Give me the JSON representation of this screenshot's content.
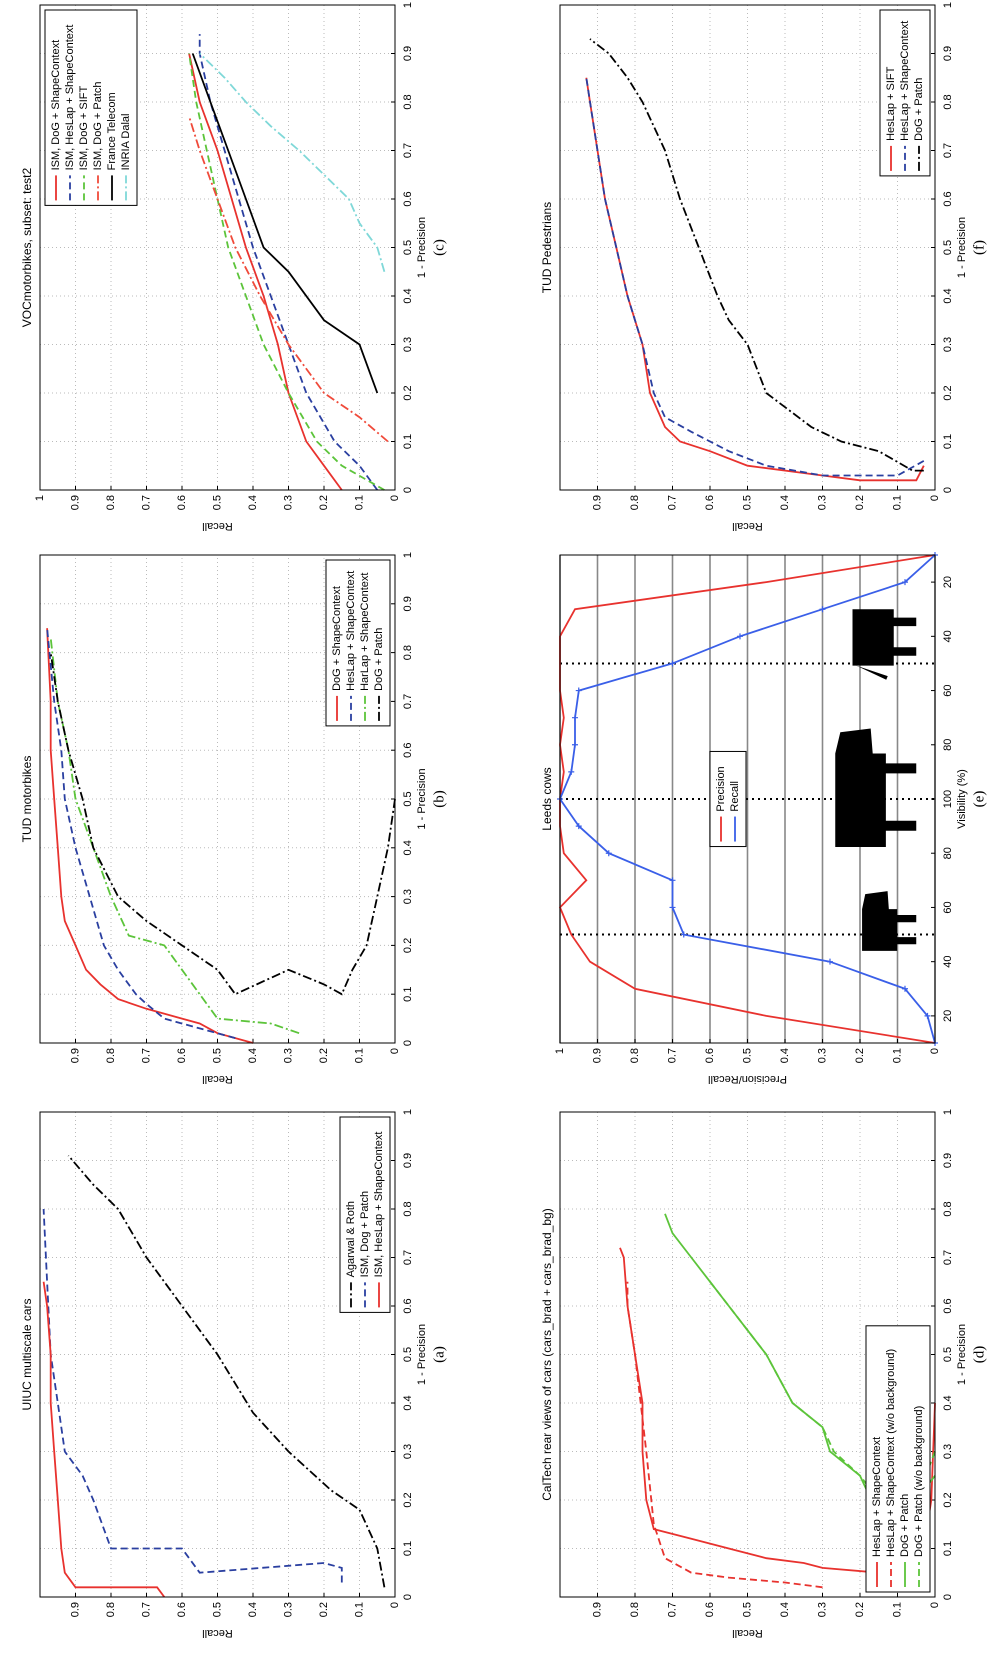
{
  "chart_data": [
    {
      "type": "line",
      "title": "UIUC multiscale cars",
      "panel_label": "(a)",
      "x_label": "1 - Precision",
      "y_label": "Recall",
      "xlim": [
        0,
        1
      ],
      "ylim": [
        0,
        1
      ],
      "xticks": [
        0,
        0.1,
        0.2,
        0.3,
        0.4,
        0.5,
        0.6,
        0.7,
        0.8,
        0.9,
        1
      ],
      "yticks": [
        0,
        0.1,
        0.2,
        0.3,
        0.4,
        0.5,
        0.6,
        0.7,
        0.8,
        0.9
      ],
      "grid": true,
      "legend": "bottom-right",
      "series": [
        {
          "name": "Agarwal & Roth",
          "color": "#000000",
          "style": "dashdot",
          "x": [
            0.02,
            0.1,
            0.18,
            0.22,
            0.3,
            0.38,
            0.5,
            0.6,
            0.7,
            0.8,
            0.85,
            0.91
          ],
          "values": [
            0.03,
            0.05,
            0.1,
            0.18,
            0.3,
            0.4,
            0.5,
            0.6,
            0.7,
            0.78,
            0.85,
            0.92
          ]
        },
        {
          "name": "ISM, Dog + Patch",
          "color": "#2a3fa0",
          "style": "dashed",
          "x": [
            0.03,
            0.06,
            0.07,
            0.05,
            0.1,
            0.1,
            0.2,
            0.25,
            0.3,
            0.4,
            0.5,
            0.65,
            0.8
          ],
          "values": [
            0.15,
            0.15,
            0.2,
            0.55,
            0.6,
            0.8,
            0.85,
            0.88,
            0.93,
            0.95,
            0.97,
            0.98,
            0.99
          ]
        },
        {
          "name": "ISM, HesLap + ShapeContext",
          "color": "#e8322e",
          "style": "solid",
          "x": [
            0,
            0.02,
            0.02,
            0.05,
            0.1,
            0.2,
            0.3,
            0.4,
            0.5,
            0.6,
            0.65
          ],
          "values": [
            0.65,
            0.67,
            0.9,
            0.93,
            0.94,
            0.95,
            0.96,
            0.97,
            0.97,
            0.98,
            0.99
          ]
        }
      ]
    },
    {
      "type": "line",
      "title": "TUD motorbikes",
      "panel_label": "(b)",
      "x_label": "1 - Precision",
      "y_label": "Recall",
      "xlim": [
        0,
        1
      ],
      "ylim": [
        0,
        1
      ],
      "xticks": [
        0,
        0.1,
        0.2,
        0.3,
        0.4,
        0.5,
        0.6,
        0.7,
        0.8,
        0.9,
        1
      ],
      "yticks": [
        0,
        0.1,
        0.2,
        0.3,
        0.4,
        0.5,
        0.6,
        0.7,
        0.8,
        0.9
      ],
      "grid": true,
      "legend": "bottom-right",
      "series": [
        {
          "name": "DoG + ShapeContext",
          "color": "#e8322e",
          "style": "solid",
          "x": [
            0,
            0.02,
            0.04,
            0.05,
            0.07,
            0.09,
            0.12,
            0.15,
            0.2,
            0.25,
            0.3,
            0.4,
            0.5,
            0.6,
            0.7,
            0.85
          ],
          "values": [
            0.4,
            0.5,
            0.55,
            0.6,
            0.7,
            0.78,
            0.83,
            0.87,
            0.9,
            0.93,
            0.94,
            0.95,
            0.96,
            0.97,
            0.97,
            0.98
          ]
        },
        {
          "name": "HesLap + ShapeContext",
          "color": "#2a3fa0",
          "style": "dashed",
          "x": [
            0.01,
            0.03,
            0.05,
            0.08,
            0.1,
            0.15,
            0.2,
            0.3,
            0.4,
            0.5,
            0.6,
            0.7,
            0.85
          ],
          "values": [
            0.45,
            0.55,
            0.65,
            0.7,
            0.73,
            0.78,
            0.82,
            0.86,
            0.9,
            0.93,
            0.94,
            0.96,
            0.98
          ]
        },
        {
          "name": "HarLap + ShapeContext",
          "color": "#5cc43a",
          "style": "dashdot",
          "x": [
            0.02,
            0.04,
            0.05,
            0.1,
            0.15,
            0.2,
            0.22,
            0.3,
            0.4,
            0.5,
            0.6,
            0.7,
            0.83
          ],
          "values": [
            0.27,
            0.35,
            0.5,
            0.55,
            0.6,
            0.65,
            0.75,
            0.8,
            0.85,
            0.9,
            0.92,
            0.95,
            0.97
          ]
        },
        {
          "name": "DoG + Patch",
          "color": "#000000",
          "style": "dashdot",
          "x": [
            0.5,
            0.4,
            0.3,
            0.2,
            0.15,
            0.1,
            0.12,
            0.15,
            0.1,
            0.15,
            0.2,
            0.25,
            0.3,
            0.4,
            0.5,
            0.6,
            0.7,
            0.8
          ],
          "values": [
            0,
            0.02,
            0.05,
            0.08,
            0.12,
            0.15,
            0.2,
            0.3,
            0.45,
            0.5,
            0.6,
            0.7,
            0.78,
            0.85,
            0.88,
            0.92,
            0.95,
            0.97
          ]
        }
      ]
    },
    {
      "type": "line",
      "title": "VOCmotorbikes, subset: test2",
      "panel_label": "(c)",
      "x_label": "1 - Precision",
      "y_label": "Recall",
      "xlim": [
        0,
        1
      ],
      "ylim": [
        0,
        1
      ],
      "xticks": [
        0,
        0.1,
        0.2,
        0.3,
        0.4,
        0.5,
        0.6,
        0.7,
        0.8,
        0.9,
        1
      ],
      "yticks": [
        0,
        0.1,
        0.2,
        0.3,
        0.4,
        0.5,
        0.6,
        0.7,
        0.8,
        0.9,
        1
      ],
      "grid": true,
      "legend": "top-right",
      "series": [
        {
          "name": "ISM, DoG + ShapeContext",
          "color": "#e8322e",
          "style": "solid",
          "x": [
            0,
            0.05,
            0.1,
            0.2,
            0.3,
            0.4,
            0.5,
            0.6,
            0.7,
            0.8,
            0.9
          ],
          "values": [
            0.15,
            0.2,
            0.25,
            0.3,
            0.33,
            0.37,
            0.42,
            0.46,
            0.5,
            0.55,
            0.58
          ]
        },
        {
          "name": "ISM, HesLap + ShapeContext",
          "color": "#2a3fa0",
          "style": "dashed",
          "x": [
            0,
            0.05,
            0.1,
            0.2,
            0.3,
            0.4,
            0.5,
            0.6,
            0.7,
            0.8,
            0.9,
            0.94
          ],
          "values": [
            0.05,
            0.1,
            0.17,
            0.25,
            0.3,
            0.35,
            0.4,
            0.44,
            0.48,
            0.52,
            0.55,
            0.55
          ]
        },
        {
          "name": "ISM, DoG + SIFT",
          "color": "#5cc43a",
          "style": "dashed",
          "x": [
            0,
            0.05,
            0.1,
            0.2,
            0.3,
            0.4,
            0.5,
            0.6,
            0.7,
            0.8,
            0.9
          ],
          "values": [
            0.03,
            0.15,
            0.22,
            0.3,
            0.37,
            0.42,
            0.47,
            0.5,
            0.53,
            0.56,
            0.58
          ]
        },
        {
          "name": "ISM, DoG + Patch",
          "color": "#f04a3a",
          "style": "dashdot",
          "x": [
            0.1,
            0.15,
            0.2,
            0.3,
            0.4,
            0.5,
            0.6,
            0.7,
            0.77
          ],
          "values": [
            0.02,
            0.1,
            0.2,
            0.3,
            0.38,
            0.45,
            0.5,
            0.55,
            0.58
          ]
        },
        {
          "name": "France Telecom",
          "color": "#000000",
          "style": "solid",
          "x": [
            0.2,
            0.3,
            0.35,
            0.45,
            0.5,
            0.6,
            0.7,
            0.8,
            0.9
          ],
          "values": [
            0.05,
            0.1,
            0.2,
            0.3,
            0.37,
            0.42,
            0.47,
            0.52,
            0.57
          ]
        },
        {
          "name": "INRIA Dalal",
          "color": "#7fd8d8",
          "style": "dashdot",
          "x": [
            0.45,
            0.5,
            0.55,
            0.6,
            0.65,
            0.7,
            0.75,
            0.8,
            0.85,
            0.9
          ],
          "values": [
            0.03,
            0.05,
            0.1,
            0.13,
            0.2,
            0.27,
            0.35,
            0.42,
            0.48,
            0.55
          ]
        }
      ]
    },
    {
      "type": "line",
      "title": "CalTech rear views of cars (cars_brad + cars_brad_bg)",
      "panel_label": "(d)",
      "x_label": "1 - Precision",
      "y_label": "Recall",
      "xlim": [
        0,
        1
      ],
      "ylim": [
        0,
        1
      ],
      "xticks": [
        0,
        0.1,
        0.2,
        0.3,
        0.4,
        0.5,
        0.6,
        0.7,
        0.8,
        0.9,
        1
      ],
      "yticks": [
        0,
        0.1,
        0.2,
        0.3,
        0.4,
        0.5,
        0.6,
        0.7,
        0.8,
        0.9
      ],
      "grid": true,
      "legend": "bottom-left",
      "series": [
        {
          "name": "HesLap + ShapeContext",
          "color": "#e8322e",
          "style": "solid",
          "x": [
            0.4,
            0.2,
            0.1,
            0.06,
            0.05,
            0.06,
            0.07,
            0.08,
            0.1,
            0.12,
            0.14,
            0.2,
            0.3,
            0.4,
            0.5,
            0.6,
            0.7,
            0.72
          ],
          "values": [
            0,
            0.01,
            0.03,
            0.08,
            0.15,
            0.3,
            0.35,
            0.45,
            0.55,
            0.65,
            0.75,
            0.77,
            0.78,
            0.78,
            0.8,
            0.82,
            0.83,
            0.84
          ]
        },
        {
          "name": "HesLap + ShapeContext (w/o background)",
          "color": "#e8322e",
          "style": "dashed",
          "x": [
            0.02,
            0.03,
            0.04,
            0.05,
            0.08,
            0.15,
            0.3,
            0.5,
            0.6,
            0.65
          ],
          "values": [
            0.3,
            0.4,
            0.55,
            0.65,
            0.72,
            0.75,
            0.77,
            0.8,
            0.82,
            0.82
          ]
        },
        {
          "name": "DoG + Patch",
          "color": "#5cc43a",
          "style": "solid",
          "x": [
            0.25,
            0.2,
            0.17,
            0.2,
            0.25,
            0.3,
            0.35,
            0.4,
            0.5,
            0.55,
            0.6,
            0.65,
            0.7,
            0.75,
            0.79
          ],
          "values": [
            0,
            0.05,
            0.1,
            0.17,
            0.2,
            0.28,
            0.3,
            0.38,
            0.45,
            0.5,
            0.55,
            0.6,
            0.65,
            0.7,
            0.72
          ]
        },
        {
          "name": "DoG + Patch (w/o background)",
          "color": "#5cc43a",
          "style": "dashed",
          "x": [
            0.3,
            0.2,
            0.15,
            0.2,
            0.25,
            0.3,
            0.35,
            0.4,
            0.5,
            0.55,
            0.6,
            0.65
          ],
          "values": [
            0,
            0.05,
            0.1,
            0.15,
            0.2,
            0.27,
            0.3,
            0.38,
            0.45,
            0.5,
            0.55,
            0.6
          ]
        }
      ]
    },
    {
      "type": "line",
      "title": "Leeds cows",
      "panel_label": "(e)",
      "x_label": "Visibility (%)",
      "y_label": "Precision/Recall",
      "categories": [
        null,
        "20",
        null,
        "40",
        null,
        "60",
        null,
        "80",
        null,
        "100",
        null,
        "80",
        null,
        "60",
        null,
        "40",
        null,
        "20",
        null
      ],
      "ylim": [
        0,
        1
      ],
      "yticks": [
        0,
        0.1,
        0.2,
        0.3,
        0.4,
        0.5,
        0.6,
        0.7,
        0.8,
        0.9,
        1
      ],
      "grid": "y",
      "legend": "center",
      "series": [
        {
          "name": "Precision",
          "color": "#e8322e",
          "style": "solid",
          "values": [
            0,
            0.45,
            0.8,
            0.92,
            0.97,
            1,
            0.93,
            0.99,
            1,
            1,
            0.99,
            1,
            0.99,
            1,
            1,
            1,
            0.96,
            0.45,
            0
          ]
        },
        {
          "name": "Recall",
          "color": "#3a5fe8",
          "style": "solid",
          "marker": "plus",
          "values": [
            0,
            0.02,
            0.08,
            0.28,
            0.67,
            0.7,
            0.7,
            0.87,
            0.95,
            1,
            0.97,
            0.96,
            0.96,
            0.95,
            0.7,
            0.52,
            0.3,
            0.08,
            0
          ]
        }
      ]
    },
    {
      "type": "line",
      "title": "TUD Pedestrians",
      "panel_label": "(f)",
      "x_label": "1 - Precision",
      "y_label": "Recall",
      "xlim": [
        0,
        1
      ],
      "ylim": [
        0,
        1
      ],
      "xticks": [
        0,
        0.1,
        0.2,
        0.3,
        0.4,
        0.5,
        0.6,
        0.7,
        0.8,
        0.9,
        1
      ],
      "yticks": [
        0,
        0.1,
        0.2,
        0.3,
        0.4,
        0.5,
        0.6,
        0.7,
        0.8,
        0.9
      ],
      "grid": true,
      "legend": "bottom-right",
      "series": [
        {
          "name": "HesLap + SIFT",
          "color": "#e8322e",
          "style": "solid",
          "x": [
            0.05,
            0.02,
            0.02,
            0.03,
            0.05,
            0.08,
            0.1,
            0.13,
            0.2,
            0.3,
            0.4,
            0.5,
            0.6,
            0.7,
            0.8,
            0.85
          ],
          "values": [
            0.03,
            0.05,
            0.2,
            0.3,
            0.5,
            0.6,
            0.68,
            0.72,
            0.76,
            0.78,
            0.82,
            0.85,
            0.88,
            0.9,
            0.92,
            0.93
          ]
        },
        {
          "name": "HesLap + ShapeContext",
          "color": "#2a3fa0",
          "style": "dashed",
          "x": [
            0.06,
            0.03,
            0.03,
            0.05,
            0.08,
            0.12,
            0.15,
            0.2,
            0.3,
            0.4,
            0.5,
            0.6,
            0.7,
            0.85
          ],
          "values": [
            0.03,
            0.1,
            0.3,
            0.45,
            0.55,
            0.65,
            0.72,
            0.75,
            0.78,
            0.82,
            0.85,
            0.88,
            0.9,
            0.93
          ]
        },
        {
          "name": "DoG + Patch",
          "color": "#000000",
          "style": "dashdot",
          "x": [
            0.04,
            0.04,
            0.08,
            0.1,
            0.13,
            0.2,
            0.3,
            0.35,
            0.4,
            0.5,
            0.6,
            0.7,
            0.8,
            0.85,
            0.9,
            0.93
          ],
          "values": [
            0.03,
            0.06,
            0.15,
            0.25,
            0.33,
            0.45,
            0.5,
            0.55,
            0.58,
            0.63,
            0.68,
            0.72,
            0.78,
            0.82,
            0.87,
            0.92
          ]
        }
      ]
    }
  ]
}
